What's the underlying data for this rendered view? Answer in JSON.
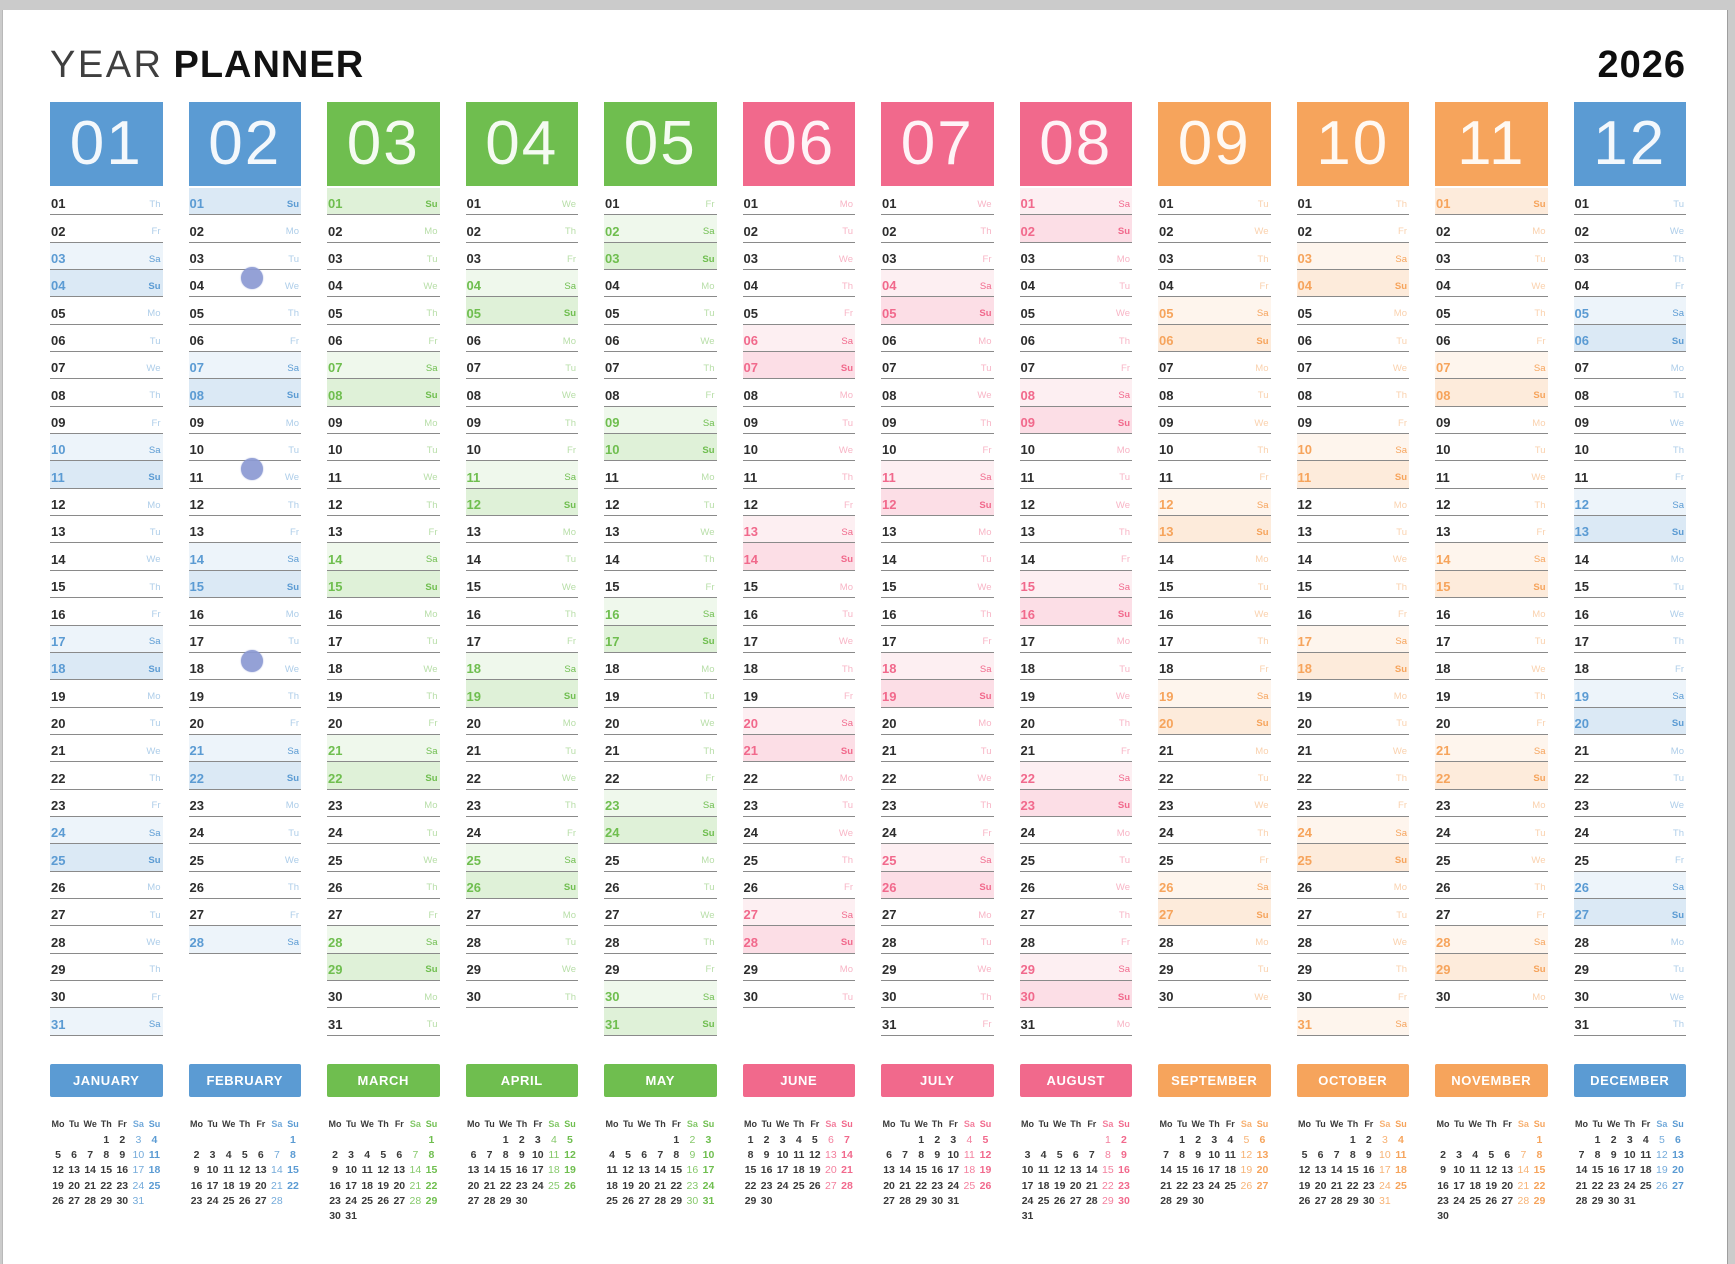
{
  "app": {
    "title_light": "YEAR",
    "title_bold": "PLANNER",
    "year": "2026"
  },
  "palette": {
    "blue": "#5b9bd3",
    "green": "#6fbe4f",
    "pink": "#f1698c",
    "orange": "#f6a45c",
    "dot": "#8c9ad3",
    "row_line": "#8a8a8a",
    "text_dark": "#2d2d2d",
    "backdrop": "#cbcbcb",
    "page": "#ffffff"
  },
  "weekday_labels": [
    "Mo",
    "Tu",
    "We",
    "Th",
    "Fr",
    "Sa",
    "Su"
  ],
  "months": [
    {
      "num": "01",
      "name": "JANUARY",
      "color": "blue",
      "days": 31,
      "weekdays": "Th Fr Sa Su Mo Tu We Th Fr Sa Su Mo Tu We Th Fr Sa Su Mo Tu We Th Fr Sa Su Mo Tu We Th Fr Sa"
    },
    {
      "num": "02",
      "name": "FEBRUARY",
      "color": "blue",
      "days": 28,
      "weekdays": "Su Mo Tu We Th Fr Sa Su Mo Tu We Th Fr Sa Su Mo Tu We Th Fr Sa Su Mo Tu We Th Fr Sa"
    },
    {
      "num": "03",
      "name": "MARCH",
      "color": "green",
      "days": 31,
      "weekdays": "Su Mo Tu We Th Fr Sa Su Mo Tu We Th Fr Sa Su Mo Tu We Th Fr Sa Su Mo Tu We Th Fr Sa Su Mo Tu"
    },
    {
      "num": "04",
      "name": "APRIL",
      "color": "green",
      "days": 30,
      "weekdays": "We Th Fr Sa Su Mo Tu We Th Fr Sa Su Mo Tu We Th Fr Sa Su Mo Tu We Th Fr Sa Su Mo Tu We Th"
    },
    {
      "num": "05",
      "name": "MAY",
      "color": "green",
      "days": 31,
      "weekdays": "Fr Sa Su Mo Tu We Th Fr Sa Su Mo Tu We Th Fr Sa Su Mo Tu We Th Fr Sa Su Mo Tu We Th Fr Sa Su"
    },
    {
      "num": "06",
      "name": "JUNE",
      "color": "pink",
      "days": 30,
      "weekdays": "Mo Tu We Th Fr Sa Su Mo Tu We Th Fr Sa Su Mo Tu We Th Fr Sa Su Mo Tu We Th Fr Sa Su Mo Tu"
    },
    {
      "num": "07",
      "name": "JULY",
      "color": "pink",
      "days": 31,
      "weekdays": "We Th Fr Sa Su Mo Tu We Th Fr Sa Su Mo Tu We Th Fr Sa Su Mo Tu We Th Fr Sa Su Mo Tu We Th Fr"
    },
    {
      "num": "08",
      "name": "AUGUST",
      "color": "pink",
      "days": 31,
      "weekdays": "Sa Su Mo Tu We Th Fr Sa Su Mo Tu We Th Fr Sa Su Mo Tu We Th Fr Sa Su Mo Tu We Th Fr Sa Su Mo"
    },
    {
      "num": "09",
      "name": "SEPTEMBER",
      "color": "orange",
      "days": 30,
      "weekdays": "Tu We Th Fr Sa Su Mo Tu We Th Fr Sa Su Mo Tu We Th Fr Sa Su Mo Tu We Th Fr Sa Su Mo Tu We"
    },
    {
      "num": "10",
      "name": "OCTOBER",
      "color": "orange",
      "days": 31,
      "weekdays": "Th Fr Sa Su Mo Tu We Th Fr Sa Su Mo Tu We Th Fr Sa Su Mo Tu We Th Fr Sa Su Mo Tu We Th Fr Sa"
    },
    {
      "num": "11",
      "name": "NOVEMBER",
      "color": "orange",
      "days": 30,
      "weekdays": "Su Mo Tu We Th Fr Sa Su Mo Tu We Th Fr Sa Su Mo Tu We Th Fr Sa Su Mo Tu We Th Fr Sa Su Mo"
    },
    {
      "num": "12",
      "name": "DECEMBER",
      "color": "blue",
      "days": 31,
      "weekdays": "Tu We Th Fr Sa Su Mo Tu We Th Fr Sa Su Mo Tu We Th Fr Sa Su Mo Tu We Th Fr Sa Su Mo Tu We Th"
    }
  ],
  "markers": {
    "month_num": "02",
    "day_rows": [
      4,
      11,
      18
    ]
  }
}
